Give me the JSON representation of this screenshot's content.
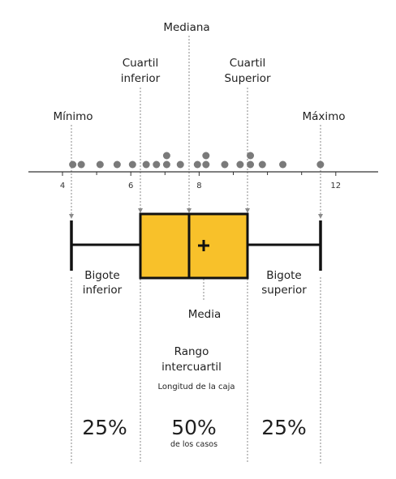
{
  "labels": {
    "mediana": "Mediana",
    "cuartil_inferior_1": "Cuartil",
    "cuartil_inferior_2": "inferior",
    "cuartil_superior_1": "Cuartil",
    "cuartil_superior_2": "Superior",
    "minimo": "Mínimo",
    "maximo": "Máximo",
    "bigote_inferior_1": "Bigote",
    "bigote_inferior_2": "inferior",
    "bigote_superior_1": "Bigote",
    "bigote_superior_2": "superior",
    "media": "Media",
    "rango_1": "Rango",
    "rango_2": "intercuartil",
    "longitud": "Longitud de la caja",
    "pct_left": "25%",
    "pct_mid": "50%",
    "pct_mid_sub": "de los casos",
    "pct_right": "25%"
  },
  "axis": {
    "ticks": [
      4,
      6,
      8,
      12
    ],
    "tick_labels": [
      "4",
      "6",
      "8",
      "12"
    ],
    "minor_ticks": [
      5,
      7,
      9,
      10,
      11
    ]
  },
  "points": [
    {
      "x": 4.3,
      "stack": 1
    },
    {
      "x": 4.55,
      "stack": 1
    },
    {
      "x": 5.1,
      "stack": 1
    },
    {
      "x": 5.6,
      "stack": 1
    },
    {
      "x": 6.05,
      "stack": 1
    },
    {
      "x": 6.45,
      "stack": 1
    },
    {
      "x": 6.75,
      "stack": 1
    },
    {
      "x": 7.05,
      "stack": 2
    },
    {
      "x": 7.45,
      "stack": 1
    },
    {
      "x": 7.95,
      "stack": 1
    },
    {
      "x": 8.2,
      "stack": 2
    },
    {
      "x": 8.75,
      "stack": 1
    },
    {
      "x": 9.2,
      "stack": 1
    },
    {
      "x": 9.5,
      "stack": 2
    },
    {
      "x": 9.85,
      "stack": 1
    },
    {
      "x": 10.45,
      "stack": 1
    },
    {
      "x": 11.55,
      "stack": 1
    }
  ],
  "summary": {
    "min": 4.3,
    "q1": 6.3,
    "median": 7.75,
    "mean": 8.15,
    "q3": 9.4,
    "max": 11.6
  },
  "colors": {
    "box_fill": "#F8C12A",
    "stroke": "#111111",
    "points": "#7a7a7a",
    "guides": "#8a8a8a"
  }
}
